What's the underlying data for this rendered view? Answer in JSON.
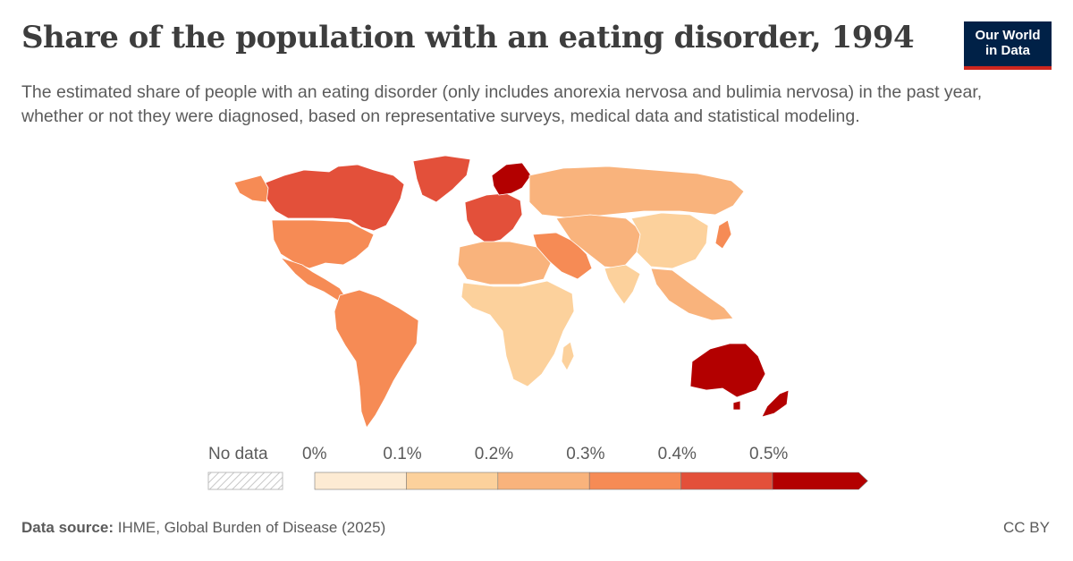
{
  "header": {
    "title": "Share of the population with an eating disorder, 1994",
    "subtitle": "The estimated share of people with an eating disorder (only includes anorexia nervosa and bulimia nervosa) in the past year, whether or not they were diagnosed, based on representative surveys, medical data and statistical modeling."
  },
  "logo": {
    "line1": "Our World",
    "line2": "in Data",
    "bg_color": "#002147",
    "accent_color": "#ce261e"
  },
  "legend": {
    "no_data_label": "No data",
    "bin_labels": [
      "0%",
      "0.1%",
      "0.2%",
      "0.3%",
      "0.4%",
      "0.5%"
    ],
    "bin_colors": [
      "#fdebd3",
      "#fcd19c",
      "#f9b37c",
      "#f68b55",
      "#e3503a",
      "#b30000"
    ]
  },
  "chart_data": {
    "type": "map",
    "year": "1994",
    "unit": "%",
    "bins": [
      0,
      0.1,
      0.2,
      0.3,
      0.4,
      0.5
    ],
    "regions": [
      {
        "name": "Australia",
        "bin": 5
      },
      {
        "name": "New Zealand",
        "bin": 5
      },
      {
        "name": "Norway",
        "bin": 5
      },
      {
        "name": "Canada",
        "bin": 4
      },
      {
        "name": "Greenland",
        "bin": 4
      },
      {
        "name": "Western Europe",
        "bin": 4
      },
      {
        "name": "United States",
        "bin": 3
      },
      {
        "name": "South America",
        "bin": 3
      },
      {
        "name": "Middle East",
        "bin": 3
      },
      {
        "name": "Japan",
        "bin": 3
      },
      {
        "name": "Russia",
        "bin": 2
      },
      {
        "name": "China",
        "bin": 1
      },
      {
        "name": "North Africa",
        "bin": 2
      },
      {
        "name": "Sub-Saharan Africa",
        "bin": 1
      },
      {
        "name": "Southeast Asia",
        "bin": 2
      }
    ]
  },
  "footer": {
    "source_label": "Data source:",
    "source_text": "IHME, Global Burden of Disease (2025)",
    "license": "CC BY"
  }
}
